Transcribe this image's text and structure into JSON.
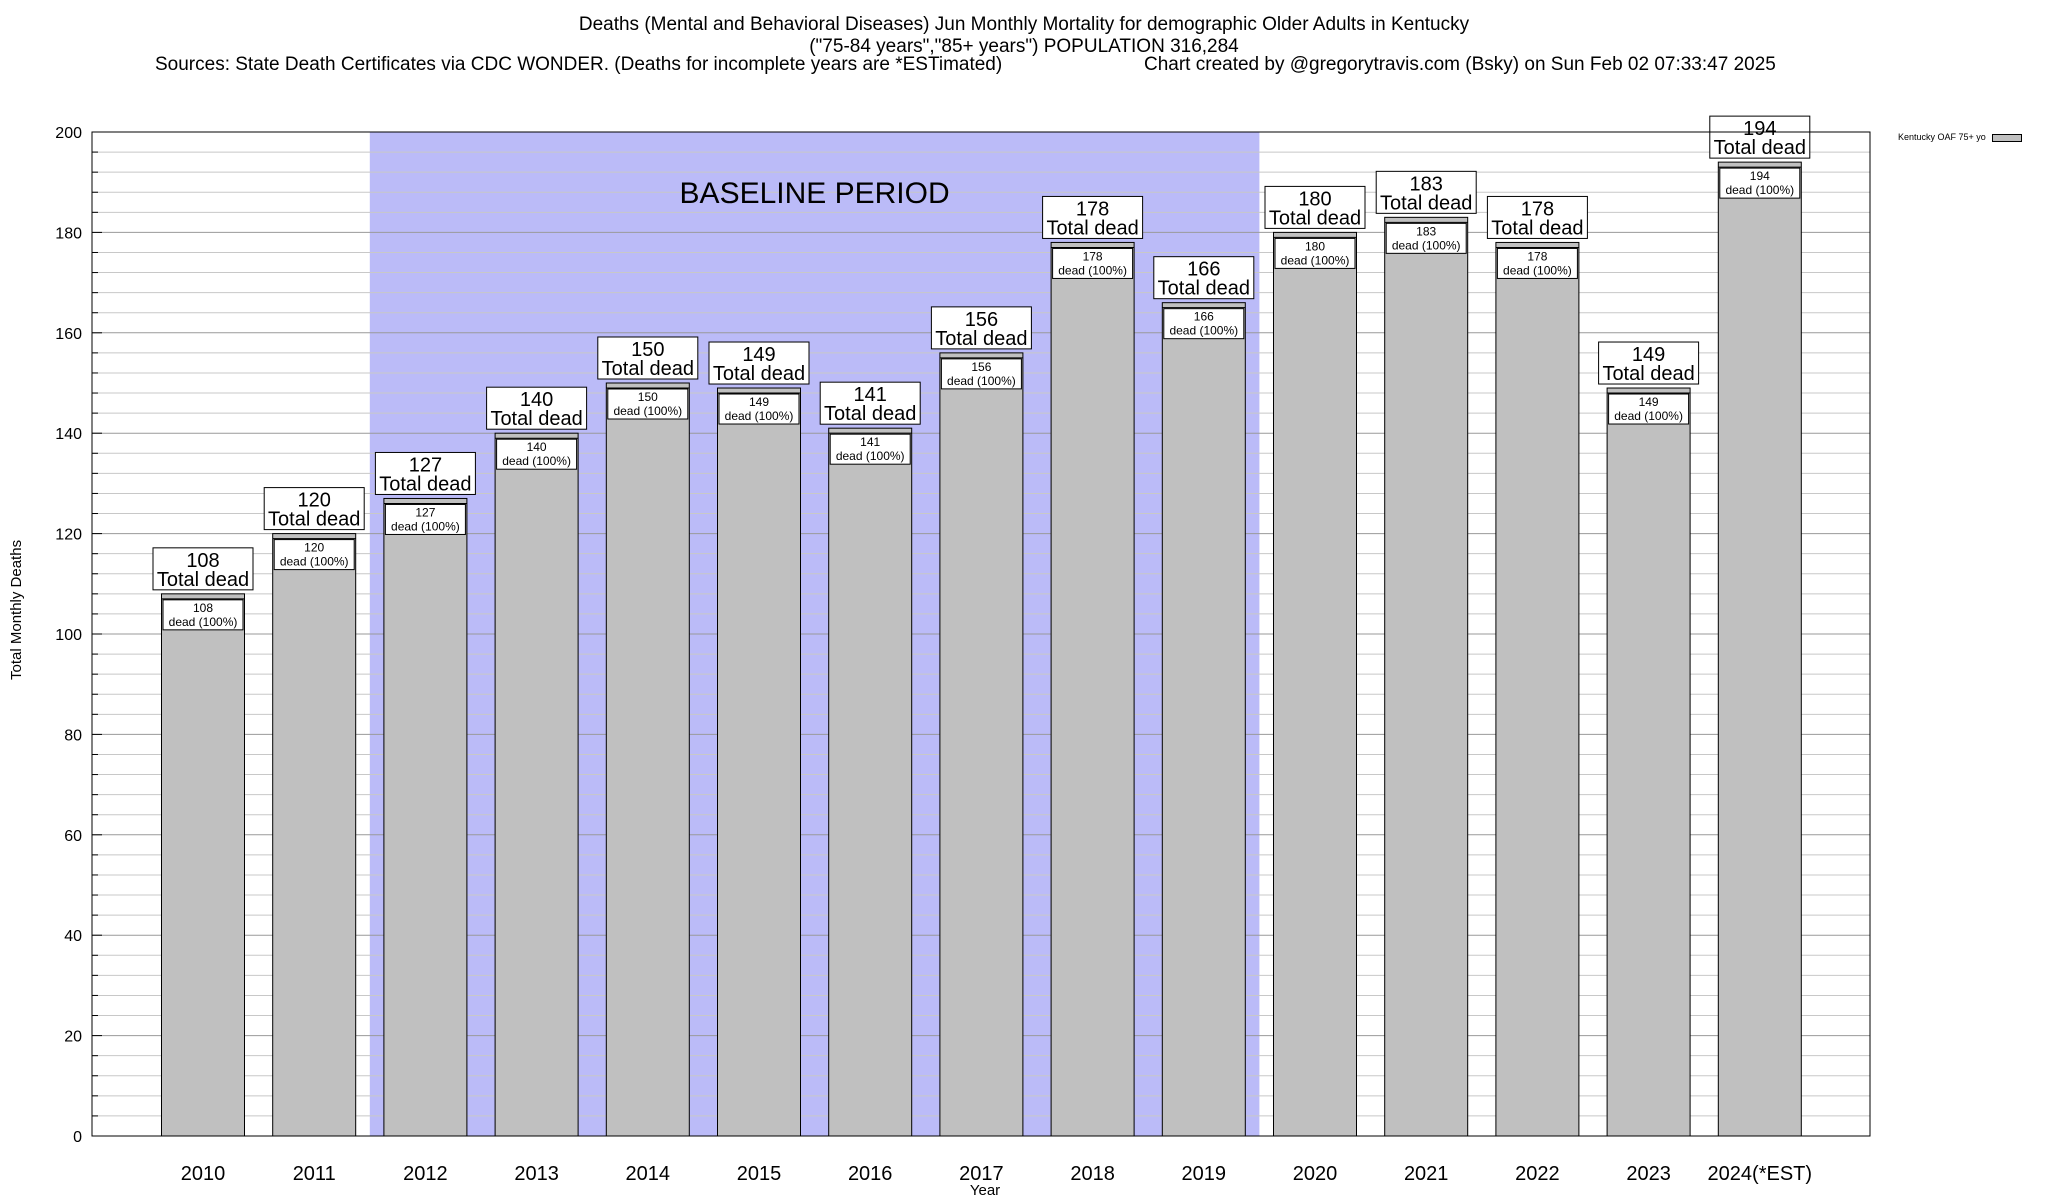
{
  "header": {
    "title_line1": "Deaths (Mental and Behavioral Diseases) Jun Monthly Mortality for demographic Older Adults in Kentucky",
    "title_line2": "(\"75-84 years\",\"85+ years\") POPULATION 316,284",
    "sources": "Sources: State Death Certificates via CDC WONDER. (Deaths for incomplete years are *ESTimated)",
    "credit": "Chart created by @gregorytravis.com (Bsky) on Sun Feb 02 07:33:47 2025"
  },
  "legend": {
    "label": "Kentucky OAF 75+ yo"
  },
  "chart_data": {
    "type": "bar",
    "title": "Deaths (Mental and Behavioral Diseases) Jun Monthly Mortality for demographic Older Adults in Kentucky",
    "xlabel": "Year",
    "ylabel": "Total Monthly Deaths",
    "ylim": [
      0,
      200
    ],
    "yticks": [
      0,
      20,
      40,
      60,
      80,
      100,
      120,
      140,
      160,
      180,
      200
    ],
    "grid": true,
    "legend_position": "top-right",
    "categories": [
      "2010",
      "2011",
      "2012",
      "2013",
      "2014",
      "2015",
      "2016",
      "2017",
      "2018",
      "2019",
      "2020",
      "2021",
      "2022",
      "2023",
      "2024(*EST)"
    ],
    "series": [
      {
        "name": "Kentucky OAF 75+ yo",
        "values": [
          108,
          120,
          127,
          140,
          150,
          149,
          141,
          156,
          178,
          166,
          180,
          183,
          178,
          149,
          194
        ]
      }
    ],
    "bar_color": "#c0c0c0",
    "total_label": "Total dead",
    "inner_label": "dead (100%)",
    "baseline": {
      "label": "BASELINE PERIOD",
      "from": "2012",
      "to": "2019",
      "color": "#bbbbf8"
    }
  }
}
